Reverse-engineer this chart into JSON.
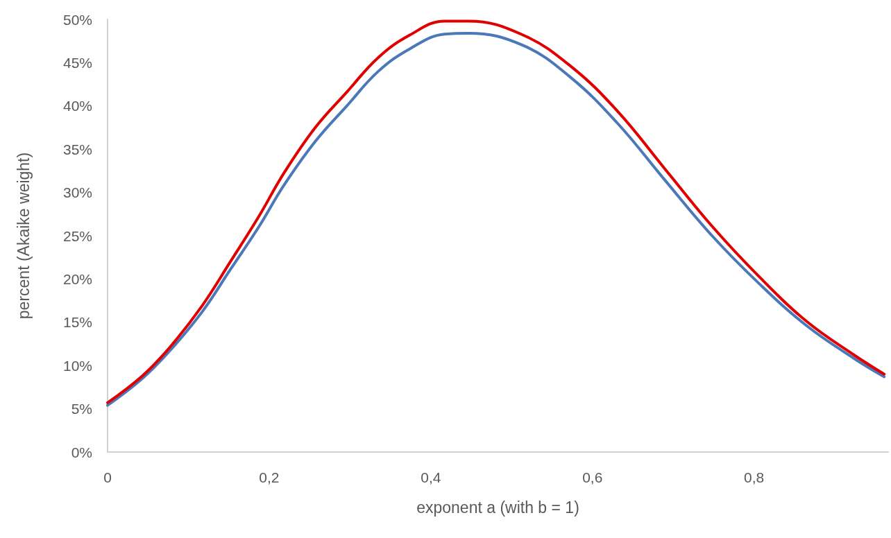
{
  "chart_data": {
    "type": "line",
    "xlabel": "exponent a (with b = 1)",
    "ylabel": "percent (Akaike weight)",
    "x": [
      0,
      0.043,
      0.077,
      0.117,
      0.152,
      0.187,
      0.218,
      0.257,
      0.296,
      0.335,
      0.374,
      0.417,
      0.447,
      0.514,
      0.573,
      0.631,
      0.689,
      0.748,
      0.807,
      0.865,
      0.924,
      0.961
    ],
    "series": [
      {
        "color": "#4a78b8",
        "values": [
          5.4,
          8.5,
          11.7,
          16.2,
          21.1,
          26.0,
          30.8,
          35.9,
          40.0,
          44.0,
          46.6,
          48.3,
          48.4,
          47.0,
          43.3,
          38.0,
          31.5,
          25.0,
          19.4,
          14.6,
          10.8,
          8.7
        ]
      },
      {
        "color": "#e00000",
        "values": [
          5.7,
          8.8,
          12.1,
          16.9,
          22.0,
          27.2,
          32.2,
          37.5,
          41.6,
          45.6,
          48.2,
          49.8,
          49.8,
          48.2,
          44.6,
          39.4,
          32.8,
          26.1,
          20.2,
          15.1,
          11.2,
          9.0
        ]
      }
    ],
    "xlim": [
      0,
      0.966
    ],
    "xticks": [
      0,
      {
        "value": 0.2,
        "label": "0,2"
      },
      {
        "value": 0.4,
        "label": "0,4"
      },
      {
        "value": 0.6,
        "label": "0,6"
      },
      {
        "value": 0.8,
        "label": "0,8"
      }
    ],
    "ylim": [
      0,
      50
    ],
    "yticks": [
      {
        "value": 0,
        "label": "0%"
      },
      {
        "value": 5,
        "label": "5%"
      },
      {
        "value": 10,
        "label": "10%"
      },
      {
        "value": 15,
        "label": "15%"
      },
      {
        "value": 20,
        "label": "20%"
      },
      {
        "value": 25,
        "label": "25%"
      },
      {
        "value": 30,
        "label": "30%"
      },
      {
        "value": 35,
        "label": "35%"
      },
      {
        "value": 40,
        "label": "40%"
      },
      {
        "value": 45,
        "label": "45%"
      },
      {
        "value": 50,
        "label": "50%"
      }
    ],
    "grid": false,
    "marker": "none",
    "line_style": "solid"
  }
}
